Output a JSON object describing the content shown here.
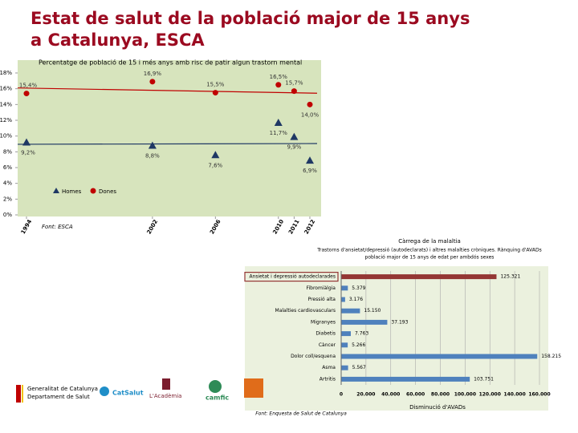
{
  "header": {
    "title_lines": [
      "Estat de salut de la població major de 15 anys",
      "a Catalunya, ESCA"
    ]
  },
  "chart_data": [
    {
      "type": "line",
      "title": "Percentatge de població de 15 i més anys amb risc de patir algun trastorn mental",
      "x": [
        1994,
        2002,
        2006,
        2010,
        2011,
        2012
      ],
      "xlim": [
        1994,
        2012
      ],
      "xticks": [
        1994,
        2002,
        2006,
        2010,
        2011,
        2012
      ],
      "ylim": [
        0,
        18
      ],
      "yticks": [
        {
          "value": 0,
          "label": "0%"
        },
        {
          "value": 2,
          "label": "2%"
        },
        {
          "value": 4,
          "label": "4%"
        },
        {
          "value": 6,
          "label": "6%"
        },
        {
          "value": 8,
          "label": "8%"
        },
        {
          "value": 10,
          "label": "10%"
        },
        {
          "value": 12,
          "label": "12%"
        },
        {
          "value": 14,
          "label": "14%"
        },
        {
          "value": 16,
          "label": "16%"
        },
        {
          "value": 18,
          "label": "18%"
        }
      ],
      "series": [
        {
          "name": "Homes",
          "color": "#1f3864",
          "marker": "triangle",
          "values": [
            9.2,
            8.8,
            7.6,
            11.7,
            9.9,
            6.9
          ],
          "value_labels": [
            "9,2%",
            "8,8%",
            "7,6%",
            "11,7%",
            "9,9%",
            "6,9%"
          ]
        },
        {
          "name": "Dones",
          "color": "#c00000",
          "marker": "circle",
          "values": [
            15.4,
            16.9,
            15.5,
            16.5,
            15.7,
            14.0
          ],
          "value_labels": [
            "15,4%",
            "16,9%",
            "15,5%",
            "16,5%",
            "15,7%",
            "14,0%"
          ]
        }
      ],
      "trendline": true,
      "legend": "bottom-left",
      "source": "Font: ESCA"
    },
    {
      "type": "hbar",
      "title": "Càrrega de la malaltia",
      "subtitle_lines": [
        "Trastorns d'ansietat/depressió (autodeclarats) i altres malalties cròniques. Rànquing d'AVADs",
        "població major de 15 anys de edat per ambdós sexes"
      ],
      "categories": [
        "Ansietat i depressió autodeclarades",
        "Fibromiàlgia",
        "Pressió alta",
        "Malalties cardiovasculars",
        "Migranyes",
        "Diabetis",
        "Càncer",
        "Dolor coll/esquena",
        "Asma",
        "Artritis"
      ],
      "values": [
        125321,
        5379,
        3176,
        15150,
        37193,
        7763,
        5266,
        158215,
        5567,
        103751
      ],
      "value_labels": [
        "125.321",
        "5.379",
        "3.176",
        "15.150",
        "37.193",
        "7.763",
        "5.266",
        "158.215",
        "5.567",
        "103.751"
      ],
      "colors": [
        "#943634",
        "#4f81bd",
        "#4f81bd",
        "#4f81bd",
        "#4f81bd",
        "#4f81bd",
        "#4f81bd",
        "#4f81bd",
        "#4f81bd",
        "#4f81bd"
      ],
      "xlim": [
        0,
        160000
      ],
      "xticks": [
        0,
        {
          "value": 20000,
          "label": "20.000"
        },
        {
          "value": 40000,
          "label": "40.000"
        },
        {
          "value": 60000,
          "label": "60.000"
        },
        {
          "value": 80000,
          "label": "80.000"
        },
        {
          "value": 100000,
          "label": "100.000"
        },
        {
          "value": 120000,
          "label": "120.000"
        },
        {
          "value": 140000,
          "label": "140.000"
        },
        {
          "value": 160000,
          "label": "160.000"
        }
      ],
      "grid": true,
      "xlabel": "Disminució d'AVADs",
      "source": "Font: Enquesta de Salut de Catalunya"
    }
  ],
  "logos": [
    "Generalitat de Catalunya",
    "Departament de Salut",
    "CatSalut",
    "L'Acadèmia",
    "camfic"
  ]
}
